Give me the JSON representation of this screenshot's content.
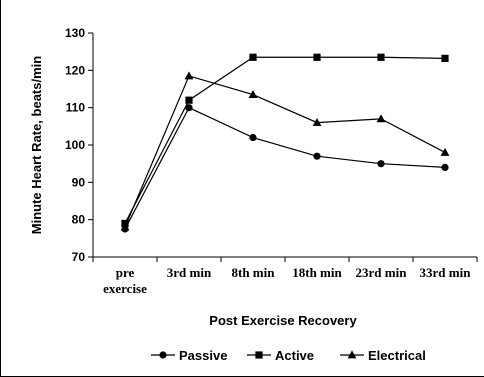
{
  "chart_data": {
    "type": "line",
    "categories": [
      [
        "pre",
        "exercise"
      ],
      [
        "3rd min"
      ],
      [
        "8th min"
      ],
      [
        "18th min"
      ],
      [
        "23rd min"
      ],
      [
        "33rd min"
      ]
    ],
    "series": [
      {
        "name": "Passive",
        "marker": "circle",
        "values": [
          77.5,
          110,
          102,
          97,
          95,
          94
        ]
      },
      {
        "name": "Active",
        "marker": "square",
        "values": [
          79,
          112,
          123.5,
          123.5,
          123.5,
          123.2
        ]
      },
      {
        "name": "Electrical",
        "marker": "triangle",
        "values": [
          78,
          118.5,
          113.5,
          106,
          107,
          98
        ]
      }
    ],
    "xlabel": "Post Exercise Recovery",
    "ylabel": "Minute Heart Rate, beats/min",
    "ylim": [
      70,
      130
    ],
    "yticks": [
      70,
      80,
      90,
      100,
      110,
      120,
      130
    ],
    "grid": false,
    "legend_position": "bottom"
  }
}
